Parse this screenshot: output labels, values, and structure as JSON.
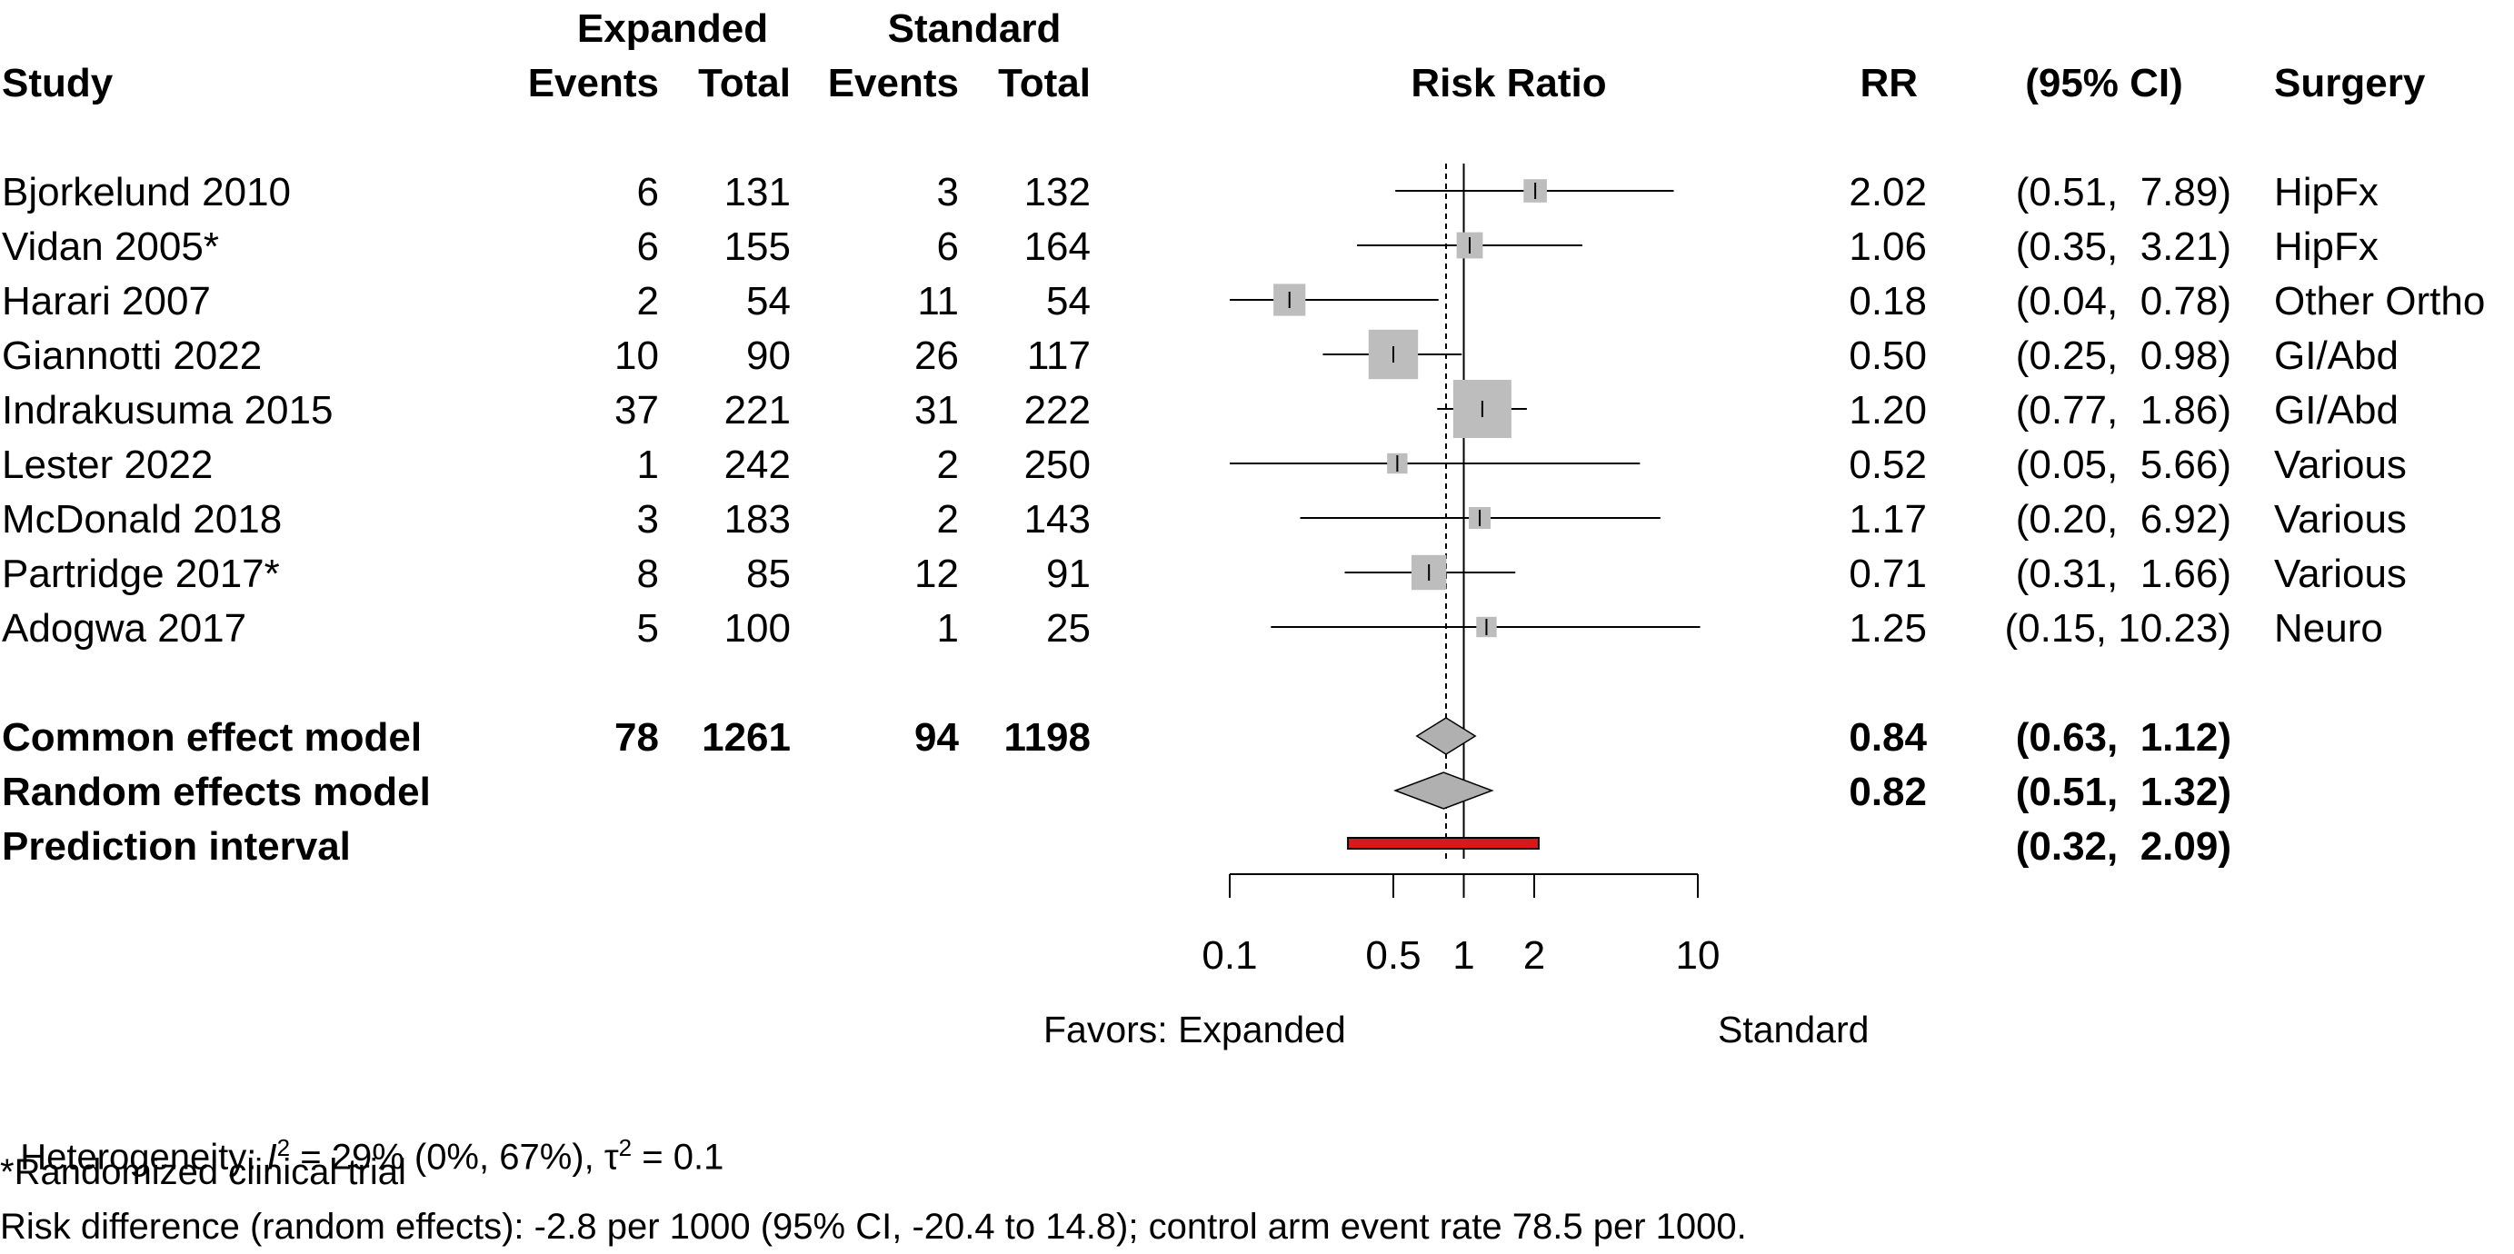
{
  "headers": {
    "study": "Study",
    "group1": "Expanded",
    "group2": "Standard",
    "events": "Events",
    "total": "Total",
    "risk_ratio": "Risk Ratio",
    "rr": "RR",
    "ci": "(95% CI)",
    "surgery": "Surgery"
  },
  "studies": [
    {
      "name": "Bjorkelund 2010",
      "e_events": "6",
      "e_total": "131",
      "s_events": "3",
      "s_total": "132",
      "rr": "2.02",
      "ci": "(0.51,  7.89)",
      "surgery": "HipFx"
    },
    {
      "name": "Vidan 2005*",
      "e_events": "6",
      "e_total": "155",
      "s_events": "6",
      "s_total": "164",
      "rr": "1.06",
      "ci": "(0.35,  3.21)",
      "surgery": "HipFx"
    },
    {
      "name": "Harari 2007",
      "e_events": "2",
      "e_total": "54",
      "s_events": "11",
      "s_total": "54",
      "rr": "0.18",
      "ci": "(0.04,  0.78)",
      "surgery": "Other Ortho"
    },
    {
      "name": "Giannotti 2022",
      "e_events": "10",
      "e_total": "90",
      "s_events": "26",
      "s_total": "117",
      "rr": "0.50",
      "ci": "(0.25,  0.98)",
      "surgery": "GI/Abd"
    },
    {
      "name": "Indrakusuma 2015",
      "e_events": "37",
      "e_total": "221",
      "s_events": "31",
      "s_total": "222",
      "rr": "1.20",
      "ci": "(0.77,  1.86)",
      "surgery": "GI/Abd"
    },
    {
      "name": "Lester 2022",
      "e_events": "1",
      "e_total": "242",
      "s_events": "2",
      "s_total": "250",
      "rr": "0.52",
      "ci": "(0.05,  5.66)",
      "surgery": "Various"
    },
    {
      "name": "McDonald 2018",
      "e_events": "3",
      "e_total": "183",
      "s_events": "2",
      "s_total": "143",
      "rr": "1.17",
      "ci": "(0.20,  6.92)",
      "surgery": "Various"
    },
    {
      "name": "Partridge 2017*",
      "e_events": "8",
      "e_total": "85",
      "s_events": "12",
      "s_total": "91",
      "rr": "0.71",
      "ci": "(0.31,  1.66)",
      "surgery": "Various"
    },
    {
      "name": "Adogwa 2017",
      "e_events": "5",
      "e_total": "100",
      "s_events": "1",
      "s_total": "25",
      "rr": "1.25",
      "ci": "(0.15, 10.23)",
      "surgery": "Neuro"
    }
  ],
  "summaries": [
    {
      "name": "Common effect model",
      "e_events": "78",
      "e_total": "1261",
      "s_events": "94",
      "s_total": "1198",
      "rr": "0.84",
      "ci": "(0.63,  1.12)"
    },
    {
      "name": "Random effects model",
      "e_events": "",
      "e_total": "",
      "s_events": "",
      "s_total": "",
      "rr": "0.82",
      "ci": "(0.51,  1.32)"
    },
    {
      "name": "Prediction interval",
      "e_events": "",
      "e_total": "",
      "s_events": "",
      "s_total": "",
      "rr": "",
      "ci": "(0.32,  2.09)"
    }
  ],
  "axis_ticks": [
    "0.1",
    "0.5",
    "1",
    "2",
    "10"
  ],
  "favors": {
    "left": "Favors: Expanded",
    "right": "Standard"
  },
  "footnotes": {
    "heterogeneity_prefix": "Heterogeneity: ",
    "i2_symbol": "I",
    "i2_sup": "2",
    "i2_value": " = 29% (0%, 67%), ",
    "tau_symbol": "τ",
    "tau_sup": "2",
    "tau_value": " = 0.1",
    "rct_note": "*Randomized clinical trial",
    "risk_diff": "Risk difference (random effects): -2.8 per 1000 (95% CI, -20.4 to 14.8); control arm event rate 78.5 per 1000."
  },
  "colors": {
    "square": "#bdbdbd",
    "diamond": "#b0b0b0",
    "prediction": "#d7191c"
  },
  "chart_data": {
    "type": "forest",
    "scale": "log",
    "xlim": [
      0.1,
      10
    ],
    "xlabel": "Risk Ratio",
    "null_value": 1,
    "pooled_reference": 0.84,
    "studies": [
      {
        "label": "Bjorkelund 2010",
        "rr": 2.02,
        "lo": 0.51,
        "hi": 7.89,
        "weight": 0.6
      },
      {
        "label": "Vidan 2005*",
        "rr": 1.06,
        "lo": 0.35,
        "hi": 3.21,
        "weight": 0.8
      },
      {
        "label": "Harari 2007",
        "rr": 0.18,
        "lo": 0.04,
        "hi": 0.78,
        "weight": 1.2
      },
      {
        "label": "Giannotti 2022",
        "rr": 0.5,
        "lo": 0.25,
        "hi": 0.98,
        "weight": 2.4
      },
      {
        "label": "Indrakusuma 2015",
        "rr": 1.2,
        "lo": 0.77,
        "hi": 1.86,
        "weight": 3.0
      },
      {
        "label": "Lester 2022",
        "rr": 0.52,
        "lo": 0.05,
        "hi": 5.66,
        "weight": 0.4
      },
      {
        "label": "McDonald 2018",
        "rr": 1.17,
        "lo": 0.2,
        "hi": 6.92,
        "weight": 0.5
      },
      {
        "label": "Partridge 2017*",
        "rr": 0.71,
        "lo": 0.31,
        "hi": 1.66,
        "weight": 1.4
      },
      {
        "label": "Adogwa 2017",
        "rr": 1.25,
        "lo": 0.15,
        "hi": 10.23,
        "weight": 0.4
      }
    ],
    "common_effect": {
      "rr": 0.84,
      "lo": 0.63,
      "hi": 1.12
    },
    "random_effects": {
      "rr": 0.82,
      "lo": 0.51,
      "hi": 1.32
    },
    "prediction_interval": {
      "lo": 0.32,
      "hi": 2.09
    }
  }
}
